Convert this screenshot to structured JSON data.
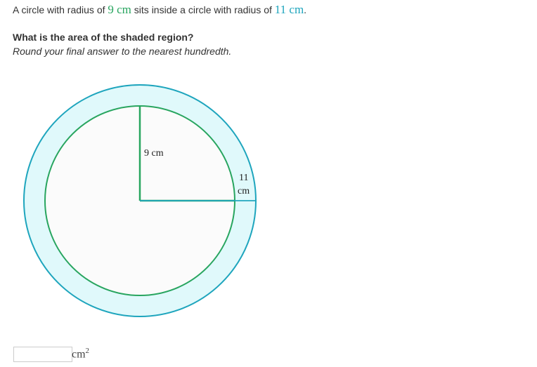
{
  "problem": {
    "text_before": "A circle with radius of ",
    "inner_radius": "9 cm",
    "text_middle": " sits inside a circle with radius of ",
    "outer_radius": "11 cm",
    "text_after": "."
  },
  "question": "What is the area of the shaded region?",
  "hint": "Round your final answer to the nearest hundredth.",
  "diagram": {
    "inner_label": "9 cm",
    "outer_label_top": "11",
    "outer_label_bottom": "cm",
    "colors": {
      "outer_stroke": "#1ea5bd",
      "outer_fill": "#e0f9fb",
      "inner_stroke": "#28a55f",
      "inner_fill": "#fbfbfb"
    }
  },
  "answer": {
    "value": "",
    "unit": "cm",
    "exponent": "2"
  }
}
